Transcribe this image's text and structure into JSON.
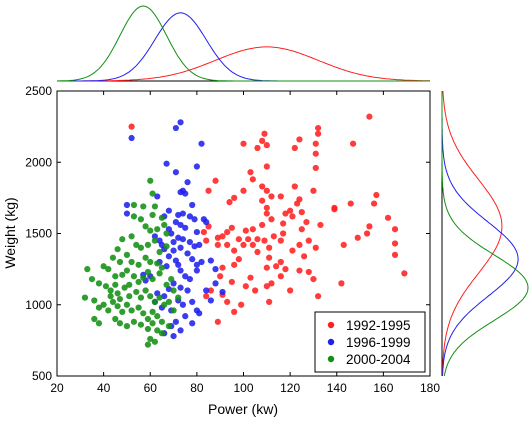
{
  "chart_data": {
    "type": "scatter",
    "xlabel": "Power (kw)",
    "ylabel": "Weight (kg)",
    "xlim": [
      20,
      180
    ],
    "ylim": [
      500,
      2500
    ],
    "xticks": [
      20,
      40,
      60,
      80,
      100,
      120,
      140,
      160,
      180
    ],
    "yticks": [
      500,
      1000,
      1500,
      2000,
      2500
    ],
    "legend_position": "bottom-right",
    "grid": false,
    "marginal_distributions": {
      "top": "x-density per series",
      "right": "y-density per series"
    },
    "series": [
      {
        "name": "1992-1995",
        "color": "#ff2020",
        "density_x": {
          "mean": 110,
          "sd": 22
        },
        "density_y": {
          "mean": 1550,
          "sd": 330
        },
        "points": [
          [
            52,
            2250
          ],
          [
            100,
            2130
          ],
          [
            106,
            2100
          ],
          [
            108,
            2150
          ],
          [
            109,
            2200
          ],
          [
            110,
            2120
          ],
          [
            122,
            2100
          ],
          [
            124,
            2160
          ],
          [
            131,
            2130
          ],
          [
            132,
            2240
          ],
          [
            132,
            2200
          ],
          [
            154,
            2320
          ],
          [
            147,
            2130
          ],
          [
            131,
            2060
          ],
          [
            131,
            1960
          ],
          [
            110,
            1970
          ],
          [
            103,
            1930
          ],
          [
            85,
            1800
          ],
          [
            88,
            1870
          ],
          [
            104,
            1880
          ],
          [
            100,
            1800
          ],
          [
            108,
            1830
          ],
          [
            110,
            1800
          ],
          [
            112,
            1760
          ],
          [
            116,
            1760
          ],
          [
            122,
            1830
          ],
          [
            124,
            1740
          ],
          [
            130,
            1800
          ],
          [
            96,
            1750
          ],
          [
            94,
            1720
          ],
          [
            108,
            1730
          ],
          [
            110,
            1680
          ],
          [
            110,
            1640
          ],
          [
            123,
            1710
          ],
          [
            139,
            1680
          ],
          [
            125,
            1650
          ],
          [
            127,
            1580
          ],
          [
            118,
            1640
          ],
          [
            121,
            1620
          ],
          [
            133,
            1560
          ],
          [
            146,
            1710
          ],
          [
            157,
            1770
          ],
          [
            156,
            1710
          ],
          [
            162,
            1610
          ],
          [
            165,
            1530
          ],
          [
            154,
            1550
          ],
          [
            153,
            1500
          ],
          [
            149,
            1470
          ],
          [
            125,
            1530
          ],
          [
            117,
            1570
          ],
          [
            113,
            1480
          ],
          [
            106,
            1460
          ],
          [
            104,
            1530
          ],
          [
            101,
            1520
          ],
          [
            95,
            1540
          ],
          [
            93,
            1510
          ],
          [
            91,
            1480
          ],
          [
            89,
            1470
          ],
          [
            85,
            1550
          ],
          [
            83,
            1510
          ],
          [
            84,
            1450
          ],
          [
            89,
            1420
          ],
          [
            93,
            1420
          ],
          [
            96,
            1380
          ],
          [
            102,
            1460
          ],
          [
            104,
            1420
          ],
          [
            106,
            1370
          ],
          [
            109,
            1450
          ],
          [
            111,
            1400
          ],
          [
            111,
            1330
          ],
          [
            116,
            1450
          ],
          [
            121,
            1380
          ],
          [
            124,
            1420
          ],
          [
            126,
            1340
          ],
          [
            116,
            1300
          ],
          [
            114,
            1270
          ],
          [
            118,
            1250
          ],
          [
            116,
            1200
          ],
          [
            112,
            1150
          ],
          [
            110,
            1260
          ],
          [
            98,
            1320
          ],
          [
            96,
            1280
          ],
          [
            91,
            1260
          ],
          [
            90,
            1200
          ],
          [
            95,
            1160
          ],
          [
            101,
            1130
          ],
          [
            105,
            1100
          ],
          [
            110,
            1130
          ],
          [
            111,
            1020
          ],
          [
            86,
            1100
          ],
          [
            84,
            1060
          ],
          [
            91,
            1070
          ],
          [
            93,
            1020
          ],
          [
            96,
            950
          ],
          [
            99,
            1000
          ],
          [
            89,
            880
          ],
          [
            120,
            1100
          ],
          [
            124,
            1240
          ],
          [
            130,
            1180
          ],
          [
            128,
            1230
          ],
          [
            132,
            1060
          ],
          [
            143,
            1420
          ],
          [
            142,
            1150
          ],
          [
            165,
            1430
          ],
          [
            165,
            1350
          ],
          [
            169,
            1220
          ],
          [
            139,
            1670
          ],
          [
            112,
            1600
          ],
          [
            108,
            1560
          ],
          [
            120,
            1660
          ],
          [
            117,
            1500
          ],
          [
            128,
            1450
          ],
          [
            131,
            1400
          ],
          [
            98,
            1460
          ],
          [
            100,
            1420
          ],
          [
            103,
            1190
          ]
        ]
      },
      {
        "name": "1996-1999",
        "color": "#2020ee",
        "density_x": {
          "mean": 73,
          "sd": 11
        },
        "density_y": {
          "mean": 1320,
          "sd": 260
        },
        "points": [
          [
            52,
            2170
          ],
          [
            73,
            2280
          ],
          [
            71,
            2240
          ],
          [
            82,
            2130
          ],
          [
            67,
            1990
          ],
          [
            71,
            1930
          ],
          [
            80,
            1970
          ],
          [
            76,
            1860
          ],
          [
            74,
            1800
          ],
          [
            73,
            1790
          ],
          [
            75,
            1780
          ],
          [
            63,
            1760
          ],
          [
            50,
            1700
          ],
          [
            50,
            1640
          ],
          [
            68,
            1660
          ],
          [
            66,
            1620
          ],
          [
            72,
            1630
          ],
          [
            79,
            1600
          ],
          [
            83,
            1600
          ],
          [
            71,
            1580
          ],
          [
            73,
            1560
          ],
          [
            75,
            1540
          ],
          [
            68,
            1530
          ],
          [
            69,
            1500
          ],
          [
            72,
            1470
          ],
          [
            62,
            1480
          ],
          [
            64,
            1450
          ],
          [
            74,
            1460
          ],
          [
            77,
            1440
          ],
          [
            79,
            1410
          ],
          [
            80,
            1510
          ],
          [
            73,
            1400
          ],
          [
            70,
            1380
          ],
          [
            66,
            1390
          ],
          [
            68,
            1340
          ],
          [
            71,
            1310
          ],
          [
            76,
            1360
          ],
          [
            78,
            1320
          ],
          [
            82,
            1300
          ],
          [
            80,
            1280
          ],
          [
            64,
            1300
          ],
          [
            67,
            1270
          ],
          [
            73,
            1240
          ],
          [
            75,
            1200
          ],
          [
            77,
            1180
          ],
          [
            80,
            1240
          ],
          [
            86,
            1310
          ],
          [
            88,
            1250
          ],
          [
            84,
            1100
          ],
          [
            76,
            1100
          ],
          [
            73,
            1120
          ],
          [
            70,
            1150
          ],
          [
            68,
            1110
          ],
          [
            66,
            1060
          ],
          [
            63,
            1080
          ],
          [
            62,
            1020
          ],
          [
            65,
            980
          ],
          [
            69,
            960
          ],
          [
            72,
            1030
          ],
          [
            74,
            1000
          ],
          [
            78,
            1020
          ],
          [
            80,
            960
          ],
          [
            81,
            940
          ],
          [
            75,
            920
          ],
          [
            71,
            880
          ],
          [
            69,
            850
          ],
          [
            66,
            800
          ],
          [
            70,
            780
          ],
          [
            73,
            820
          ],
          [
            78,
            870
          ],
          [
            86,
            1030
          ],
          [
            88,
            1150
          ],
          [
            91,
            1090
          ],
          [
            60,
            1200
          ],
          [
            57,
            1210
          ],
          [
            58,
            1170
          ],
          [
            74,
            1640
          ],
          [
            77,
            1620
          ],
          [
            78,
            1700
          ],
          [
            84,
            1580
          ],
          [
            81,
            1420
          ],
          [
            72,
            1280
          ],
          [
            70,
            1440
          ],
          [
            65,
            1420
          ]
        ]
      },
      {
        "name": "2000-2004",
        "color": "#138f13",
        "density_x": {
          "mean": 57,
          "sd": 10
        },
        "density_y": {
          "mean": 1120,
          "sd": 230
        },
        "points": [
          [
            60,
            1870
          ],
          [
            61,
            1780
          ],
          [
            53,
            1700
          ],
          [
            57,
            1690
          ],
          [
            62,
            1690
          ],
          [
            65,
            1610
          ],
          [
            61,
            1630
          ],
          [
            56,
            1600
          ],
          [
            53,
            1620
          ],
          [
            58,
            1550
          ],
          [
            60,
            1520
          ],
          [
            63,
            1530
          ],
          [
            66,
            1560
          ],
          [
            67,
            1500
          ],
          [
            48,
            1460
          ],
          [
            46,
            1390
          ],
          [
            52,
            1480
          ],
          [
            54,
            1420
          ],
          [
            56,
            1400
          ],
          [
            59,
            1420
          ],
          [
            62,
            1450
          ],
          [
            64,
            1370
          ],
          [
            67,
            1410
          ],
          [
            44,
            1330
          ],
          [
            47,
            1300
          ],
          [
            50,
            1350
          ],
          [
            52,
            1300
          ],
          [
            55,
            1280
          ],
          [
            58,
            1330
          ],
          [
            60,
            1300
          ],
          [
            63,
            1290
          ],
          [
            65,
            1260
          ],
          [
            40,
            1270
          ],
          [
            42,
            1250
          ],
          [
            45,
            1200
          ],
          [
            48,
            1210
          ],
          [
            50,
            1240
          ],
          [
            53,
            1200
          ],
          [
            57,
            1190
          ],
          [
            59,
            1230
          ],
          [
            61,
            1180
          ],
          [
            64,
            1220
          ],
          [
            33,
            1250
          ],
          [
            35,
            1180
          ],
          [
            38,
            1150
          ],
          [
            41,
            1130
          ],
          [
            43,
            1100
          ],
          [
            46,
            1080
          ],
          [
            49,
            1120
          ],
          [
            51,
            1060
          ],
          [
            54,
            1090
          ],
          [
            56,
            1050
          ],
          [
            58,
            1100
          ],
          [
            60,
            1060
          ],
          [
            62,
            1020
          ],
          [
            64,
            1050
          ],
          [
            66,
            1000
          ],
          [
            68,
            1020
          ],
          [
            70,
            960
          ],
          [
            32,
            1050
          ],
          [
            36,
            1030
          ],
          [
            38,
            980
          ],
          [
            40,
            1000
          ],
          [
            42,
            960
          ],
          [
            44,
            1020
          ],
          [
            46,
            990
          ],
          [
            48,
            950
          ],
          [
            50,
            1000
          ],
          [
            52,
            960
          ],
          [
            55,
            980
          ],
          [
            57,
            940
          ],
          [
            59,
            900
          ],
          [
            61,
            950
          ],
          [
            63,
            920
          ],
          [
            65,
            880
          ],
          [
            36,
            900
          ],
          [
            38,
            870
          ],
          [
            45,
            900
          ],
          [
            47,
            870
          ],
          [
            50,
            850
          ],
          [
            53,
            880
          ],
          [
            56,
            860
          ],
          [
            59,
            830
          ],
          [
            61,
            870
          ],
          [
            63,
            820
          ],
          [
            65,
            800
          ],
          [
            68,
            850
          ],
          [
            60,
            760
          ],
          [
            62,
            740
          ],
          [
            59,
            720
          ],
          [
            70,
            1100
          ],
          [
            72,
            1050
          ],
          [
            67,
            1140
          ],
          [
            69,
            1180
          ],
          [
            45,
            1140
          ],
          [
            43,
            1060
          ],
          [
            51,
            1140
          ],
          [
            55,
            1160
          ],
          [
            47,
            1040
          ]
        ]
      }
    ]
  }
}
